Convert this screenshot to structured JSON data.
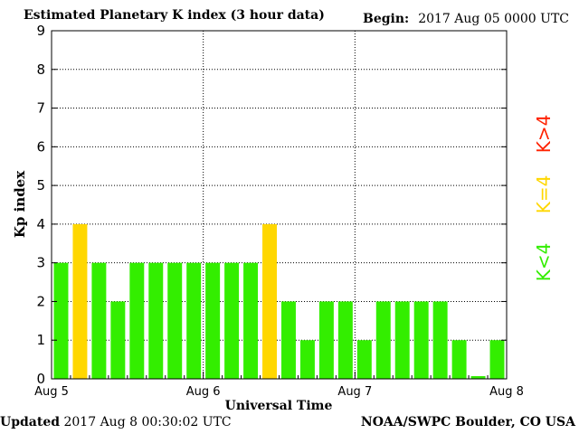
{
  "header": {
    "title": "Estimated Planetary K index (3 hour data)",
    "begin_label": "Begin:",
    "begin_value": "2017 Aug 05 0000 UTC"
  },
  "footer": {
    "updated_label": "Updated",
    "updated_value": "2017 Aug  8 00:30:02 UTC",
    "source": "NOAA/SWPC Boulder, CO USA"
  },
  "legend": {
    "low": {
      "label": "K<4",
      "color": "#33ee00"
    },
    "mid": {
      "label": "K=4",
      "color": "#ffd700"
    },
    "high": {
      "label": "K>4",
      "color": "#ff2200"
    }
  },
  "chart_data": {
    "type": "bar",
    "xlabel": "Universal Time",
    "ylabel": "Kp index",
    "ylim": [
      0,
      9
    ],
    "yticks": [
      "0",
      "1",
      "2",
      "3",
      "4",
      "5",
      "6",
      "7",
      "8",
      "9"
    ],
    "x_tick_labels": [
      "Aug 5",
      "Aug 6",
      "Aug 7",
      "Aug 8"
    ],
    "grid": true,
    "values": [
      3,
      4,
      3,
      2,
      3,
      3,
      3,
      3,
      3,
      3,
      3,
      4,
      2,
      1,
      2,
      2,
      1,
      2,
      2,
      2,
      2,
      1,
      0.07,
      1
    ]
  }
}
